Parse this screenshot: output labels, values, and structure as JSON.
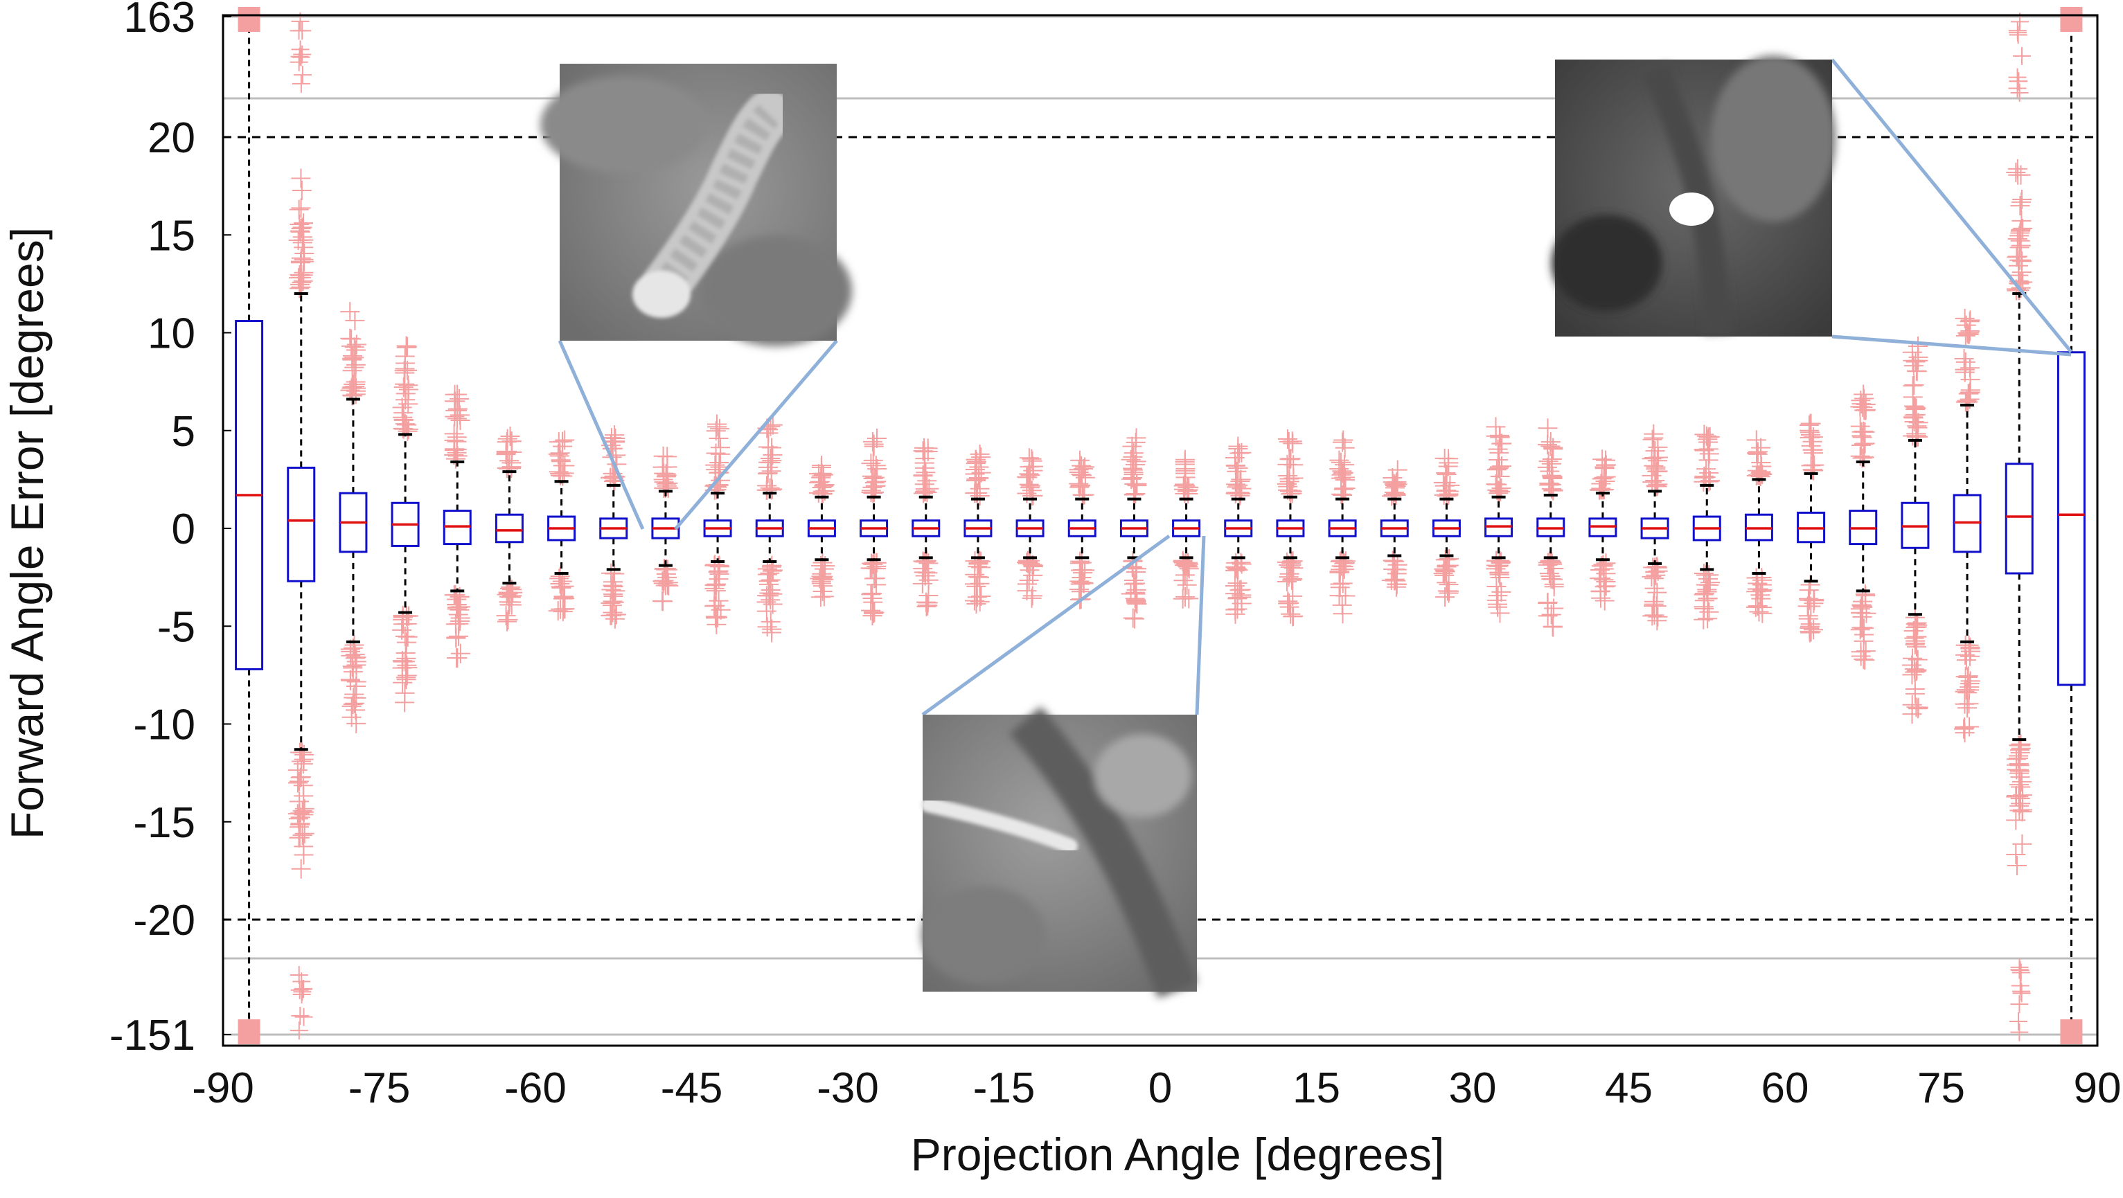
{
  "chart_data": {
    "type": "box",
    "xlabel": "Projection Angle [degrees]",
    "ylabel": "Forward Angle Error [degrees]",
    "x_ticks": [
      -90,
      -75,
      -60,
      -45,
      -30,
      -15,
      0,
      15,
      30,
      45,
      60,
      75,
      90
    ],
    "y_ticks": [
      "-151",
      "-20",
      "-15",
      "-10",
      "-5",
      "0",
      "5",
      "10",
      "15",
      "20",
      "163"
    ],
    "y_axis_note": "broken axis: linear from -20 to 20, with compressed extreme bands up to 163 and down to -151",
    "xlim": [
      -90,
      90
    ],
    "threshold_lines": [
      20,
      -20
    ],
    "colors": {
      "box": "#1010cc",
      "median": "#e01010",
      "outlier": "#f4a0a0",
      "whisker": "#000000",
      "inset_link": "#8fb0d8"
    },
    "boxes": [
      {
        "x": -87.5,
        "q1": -7.2,
        "median": 1.7,
        "q3": 10.6,
        "whisker_low": -151,
        "whisker_high": 163,
        "outlier_spread": 0
      },
      {
        "x": -82.5,
        "q1": -2.7,
        "median": 0.4,
        "q3": 3.1,
        "whisker_low": -11.3,
        "whisker_high": 12.0,
        "outlier_spread": 6.0
      },
      {
        "x": -77.5,
        "q1": -1.2,
        "median": 0.3,
        "q3": 1.8,
        "whisker_low": -5.8,
        "whisker_high": 6.6,
        "outlier_spread": 4.5
      },
      {
        "x": -72.5,
        "q1": -0.9,
        "median": 0.2,
        "q3": 1.3,
        "whisker_low": -4.3,
        "whisker_high": 4.8,
        "outlier_spread": 4.5
      },
      {
        "x": -67.5,
        "q1": -0.8,
        "median": 0.1,
        "q3": 0.9,
        "whisker_low": -3.2,
        "whisker_high": 3.4,
        "outlier_spread": 3.5
      },
      {
        "x": -62.5,
        "q1": -0.7,
        "median": -0.1,
        "q3": 0.7,
        "whisker_low": -2.8,
        "whisker_high": 2.9,
        "outlier_spread": 2.0
      },
      {
        "x": -57.5,
        "q1": -0.6,
        "median": 0.0,
        "q3": 0.6,
        "whisker_low": -2.3,
        "whisker_high": 2.4,
        "outlier_spread": 2.0
      },
      {
        "x": -52.5,
        "q1": -0.5,
        "median": 0.0,
        "q3": 0.5,
        "whisker_low": -2.1,
        "whisker_high": 2.2,
        "outlier_spread": 2.5
      },
      {
        "x": -47.5,
        "q1": -0.5,
        "median": 0.0,
        "q3": 0.5,
        "whisker_low": -1.9,
        "whisker_high": 1.9,
        "outlier_spread": 2.0
      },
      {
        "x": -42.5,
        "q1": -0.4,
        "median": 0.0,
        "q3": 0.4,
        "whisker_low": -1.7,
        "whisker_high": 1.8,
        "outlier_spread": 3.5
      },
      {
        "x": -37.5,
        "q1": -0.4,
        "median": 0.0,
        "q3": 0.4,
        "whisker_low": -1.7,
        "whisker_high": 1.8,
        "outlier_spread": 3.5
      },
      {
        "x": -32.5,
        "q1": -0.4,
        "median": 0.0,
        "q3": 0.4,
        "whisker_low": -1.6,
        "whisker_high": 1.6,
        "outlier_spread": 2.0
      },
      {
        "x": -27.5,
        "q1": -0.4,
        "median": 0.0,
        "q3": 0.4,
        "whisker_low": -1.6,
        "whisker_high": 1.6,
        "outlier_spread": 3.0
      },
      {
        "x": -22.5,
        "q1": -0.4,
        "median": 0.0,
        "q3": 0.4,
        "whisker_low": -1.5,
        "whisker_high": 1.6,
        "outlier_spread": 2.5
      },
      {
        "x": -17.5,
        "q1": -0.4,
        "median": 0.0,
        "q3": 0.4,
        "whisker_low": -1.5,
        "whisker_high": 1.5,
        "outlier_spread": 2.5
      },
      {
        "x": -12.5,
        "q1": -0.4,
        "median": 0.0,
        "q3": 0.4,
        "whisker_low": -1.5,
        "whisker_high": 1.5,
        "outlier_spread": 2.0
      },
      {
        "x": -7.5,
        "q1": -0.4,
        "median": 0.0,
        "q3": 0.4,
        "whisker_low": -1.5,
        "whisker_high": 1.5,
        "outlier_spread": 2.0
      },
      {
        "x": -2.5,
        "q1": -0.4,
        "median": 0.0,
        "q3": 0.4,
        "whisker_low": -1.5,
        "whisker_high": 1.5,
        "outlier_spread": 3.0
      },
      {
        "x": 2.5,
        "q1": -0.4,
        "median": 0.0,
        "q3": 0.4,
        "whisker_low": -1.5,
        "whisker_high": 1.5,
        "outlier_spread": 2.0
      },
      {
        "x": 7.5,
        "q1": -0.4,
        "median": 0.0,
        "q3": 0.4,
        "whisker_low": -1.5,
        "whisker_high": 1.5,
        "outlier_spread": 3.0
      },
      {
        "x": 12.5,
        "q1": -0.4,
        "median": 0.0,
        "q3": 0.4,
        "whisker_low": -1.5,
        "whisker_high": 1.6,
        "outlier_spread": 3.0
      },
      {
        "x": 17.5,
        "q1": -0.4,
        "median": 0.0,
        "q3": 0.4,
        "whisker_low": -1.5,
        "whisker_high": 1.5,
        "outlier_spread": 3.0
      },
      {
        "x": 22.5,
        "q1": -0.4,
        "median": 0.0,
        "q3": 0.4,
        "whisker_low": -1.4,
        "whisker_high": 1.5,
        "outlier_spread": 1.5
      },
      {
        "x": 27.5,
        "q1": -0.4,
        "median": 0.0,
        "q3": 0.4,
        "whisker_low": -1.4,
        "whisker_high": 1.5,
        "outlier_spread": 2.0
      },
      {
        "x": 32.5,
        "q1": -0.4,
        "median": 0.1,
        "q3": 0.5,
        "whisker_low": -1.5,
        "whisker_high": 1.6,
        "outlier_spread": 3.5
      },
      {
        "x": 37.5,
        "q1": -0.4,
        "median": 0.0,
        "q3": 0.5,
        "whisker_low": -1.5,
        "whisker_high": 1.7,
        "outlier_spread": 3.5
      },
      {
        "x": 42.5,
        "q1": -0.4,
        "median": 0.1,
        "q3": 0.5,
        "whisker_low": -1.6,
        "whisker_high": 1.8,
        "outlier_spread": 2.0
      },
      {
        "x": 47.5,
        "q1": -0.5,
        "median": 0.0,
        "q3": 0.5,
        "whisker_low": -1.8,
        "whisker_high": 1.9,
        "outlier_spread": 3.0
      },
      {
        "x": 52.5,
        "q1": -0.6,
        "median": 0.0,
        "q3": 0.6,
        "whisker_low": -2.1,
        "whisker_high": 2.2,
        "outlier_spread": 2.5
      },
      {
        "x": 57.5,
        "q1": -0.6,
        "median": 0.0,
        "q3": 0.7,
        "whisker_low": -2.3,
        "whisker_high": 2.5,
        "outlier_spread": 2.0
      },
      {
        "x": 62.5,
        "q1": -0.7,
        "median": 0.0,
        "q3": 0.8,
        "whisker_low": -2.7,
        "whisker_high": 2.8,
        "outlier_spread": 2.5
      },
      {
        "x": 67.5,
        "q1": -0.8,
        "median": 0.0,
        "q3": 0.9,
        "whisker_low": -3.2,
        "whisker_high": 3.4,
        "outlier_spread": 3.5
      },
      {
        "x": 72.5,
        "q1": -1.0,
        "median": 0.1,
        "q3": 1.3,
        "whisker_low": -4.4,
        "whisker_high": 4.5,
        "outlier_spread": 5.0
      },
      {
        "x": 77.5,
        "q1": -1.2,
        "median": 0.3,
        "q3": 1.7,
        "whisker_low": -5.8,
        "whisker_high": 6.3,
        "outlier_spread": 4.5
      },
      {
        "x": 82.5,
        "q1": -2.3,
        "median": 0.6,
        "q3": 3.3,
        "whisker_low": -10.8,
        "whisker_high": 12.0,
        "outlier_spread": 6.5
      },
      {
        "x": 87.5,
        "q1": -8.0,
        "median": 0.7,
        "q3": 9.0,
        "whisker_low": -151,
        "whisker_high": 163,
        "outlier_spread": 0
      }
    ]
  },
  "insets": [
    {
      "name": "inset-top-left",
      "linked_angle": -47.5
    },
    {
      "name": "inset-bottom-center",
      "linked_angle": 2.5
    },
    {
      "name": "inset-top-right",
      "linked_angle": 87.5
    }
  ]
}
